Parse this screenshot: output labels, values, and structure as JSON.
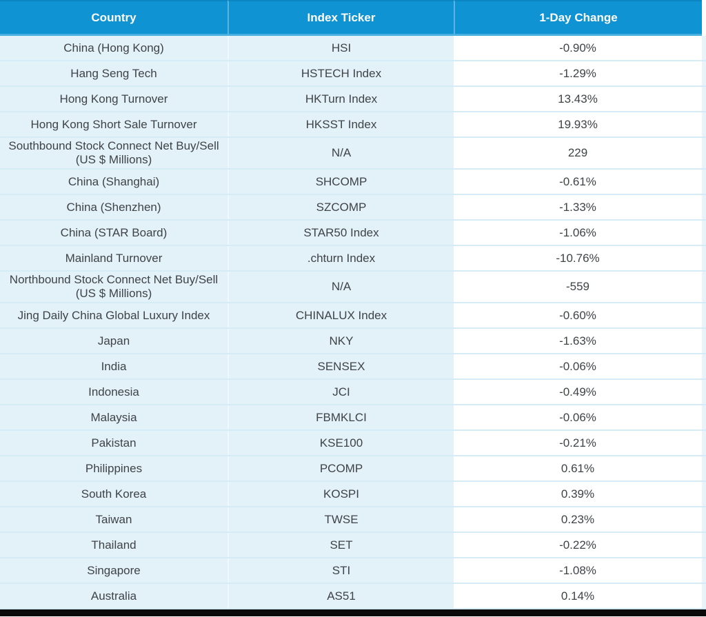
{
  "table": {
    "columns": [
      "Country",
      "Index Ticker",
      "1-Day Change"
    ],
    "rows": [
      {
        "country": "China (Hong Kong)",
        "ticker": "HSI",
        "change": "-0.90%"
      },
      {
        "country": "Hang Seng Tech",
        "ticker": "HSTECH Index",
        "change": "-1.29%"
      },
      {
        "country": "Hong Kong Turnover",
        "ticker": "HKTurn Index",
        "change": "13.43%"
      },
      {
        "country": "Hong Kong Short Sale Turnover",
        "ticker": "HKSST Index",
        "change": "19.93%"
      },
      {
        "country": "Southbound Stock Connect Net Buy/Sell (US $ Millions)",
        "ticker": "N/A",
        "change": "229"
      },
      {
        "country": "China (Shanghai)",
        "ticker": "SHCOMP",
        "change": "-0.61%"
      },
      {
        "country": "China (Shenzhen)",
        "ticker": "SZCOMP",
        "change": "-1.33%"
      },
      {
        "country": "China (STAR Board)",
        "ticker": "STAR50 Index",
        "change": "-1.06%"
      },
      {
        "country": "Mainland Turnover",
        "ticker": ".chturn Index",
        "change": "-10.76%"
      },
      {
        "country": "Northbound Stock Connect Net Buy/Sell (US $ Millions)",
        "ticker": "N/A",
        "change": "-559"
      },
      {
        "country": "Jing Daily China Global Luxury Index",
        "ticker": "CHINALUX Index",
        "change": "-0.60%"
      },
      {
        "country": "Japan",
        "ticker": "NKY",
        "change": "-1.63%"
      },
      {
        "country": "India",
        "ticker": "SENSEX",
        "change": "-0.06%"
      },
      {
        "country": "Indonesia",
        "ticker": "JCI",
        "change": "-0.49%"
      },
      {
        "country": "Malaysia",
        "ticker": "FBMKLCI",
        "change": "-0.06%"
      },
      {
        "country": "Pakistan",
        "ticker": "KSE100",
        "change": "-0.21%"
      },
      {
        "country": "Philippines",
        "ticker": "PCOMP",
        "change": "0.61%"
      },
      {
        "country": "South Korea",
        "ticker": "KOSPI",
        "change": "0.39%"
      },
      {
        "country": "Taiwan",
        "ticker": "TWSE",
        "change": "0.23%"
      },
      {
        "country": "Thailand",
        "ticker": "SET",
        "change": "-0.22%"
      },
      {
        "country": "Singapore",
        "ticker": "STI",
        "change": "-1.08%"
      },
      {
        "country": "Australia",
        "ticker": "AS51",
        "change": "0.14%"
      }
    ]
  },
  "chart_data": {
    "type": "table",
    "title": "",
    "columns": [
      "Country",
      "Index Ticker",
      "1-Day Change"
    ],
    "rows": [
      [
        "China (Hong Kong)",
        "HSI",
        "-0.90%"
      ],
      [
        "Hang Seng Tech",
        "HSTECH Index",
        "-1.29%"
      ],
      [
        "Hong Kong Turnover",
        "HKTurn Index",
        "13.43%"
      ],
      [
        "Hong Kong Short Sale Turnover",
        "HKSST Index",
        "19.93%"
      ],
      [
        "Southbound Stock Connect Net Buy/Sell (US $ Millions)",
        "N/A",
        "229"
      ],
      [
        "China (Shanghai)",
        "SHCOMP",
        "-0.61%"
      ],
      [
        "China (Shenzhen)",
        "SZCOMP",
        "-1.33%"
      ],
      [
        "China (STAR Board)",
        "STAR50 Index",
        "-1.06%"
      ],
      [
        "Mainland Turnover",
        ".chturn Index",
        "-10.76%"
      ],
      [
        "Northbound Stock Connect Net Buy/Sell (US $ Millions)",
        "N/A",
        "-559"
      ],
      [
        "Jing Daily China Global Luxury Index",
        "CHINALUX Index",
        "-0.60%"
      ],
      [
        "Japan",
        "NKY",
        "-1.63%"
      ],
      [
        "India",
        "SENSEX",
        "-0.06%"
      ],
      [
        "Indonesia",
        "JCI",
        "-0.49%"
      ],
      [
        "Malaysia",
        "FBMKLCI",
        "-0.06%"
      ],
      [
        "Pakistan",
        "KSE100",
        "-0.21%"
      ],
      [
        "Philippines",
        "PCOMP",
        "0.61%"
      ],
      [
        "South Korea",
        "KOSPI",
        "0.39%"
      ],
      [
        "Taiwan",
        "TWSE",
        "0.23%"
      ],
      [
        "Thailand",
        "SET",
        "-0.22%"
      ],
      [
        "Singapore",
        "STI",
        "-1.08%"
      ],
      [
        "Australia",
        "AS51",
        "0.14%"
      ]
    ]
  },
  "colors": {
    "header_bg": "#0F93D3",
    "header_divider": "#5AB5E2",
    "header_bottom_border": "#49AFDE",
    "row_bg": "#E3F1F8",
    "row_separator": "#D5EBF5",
    "change_col_bg": "#FFFFFF",
    "text": "#3E4347",
    "bottom_bar": "#0A0A0A"
  }
}
